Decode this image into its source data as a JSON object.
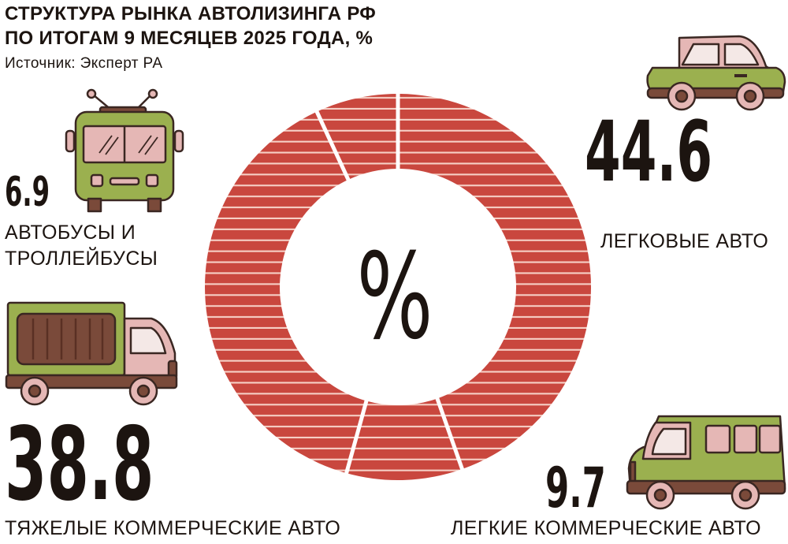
{
  "header": {
    "title_line1": "СТРУКТУРА РЫНКА АВТОЛИЗИНГА РФ",
    "title_line2": "ПО ИТОГАМ 9 МЕСЯЦЕВ 2025 ГОДА, %",
    "source": "Источник: Эксперт РА"
  },
  "center_symbol": "%",
  "colors": {
    "donut": "#c9473e",
    "stripe": "#f6d0c6",
    "green": "#9bb04f",
    "pink": "#e5b7b5",
    "brown": "#7a4a3a"
  },
  "chart_data": {
    "type": "pie",
    "title": "СТРУКТУРА РЫНКА АВТОЛИЗИНГА РФ ПО ИТОГАМ 9 МЕСЯЦЕВ 2025 ГОДА, %",
    "categories": [
      "ЛЕГКОВЫЕ АВТО",
      "ЛЕГКИЕ КОММЕРЧЕСКИЕ АВТО",
      "ТЯЖЕЛЫЕ КОММЕРЧЕСКИЕ АВТО",
      "АВТОБУСЫ И ТРОЛЛЕЙБУСЫ"
    ],
    "values": [
      44.6,
      9.7,
      38.8,
      6.9
    ],
    "value_labels": [
      "44.6",
      "9.7",
      "38.8",
      "6.9"
    ],
    "label_lines": [
      [
        "ЛЕГКОВЫЕ АВТО"
      ],
      [
        "ЛЕГКИЕ КОММЕРЧЕСКИЕ АВТО"
      ],
      [
        "ТЯЖЕЛЫЕ КОММЕРЧЕСКИЕ АВТО"
      ],
      [
        "АВТОБУСЫ И",
        "ТРОЛЛЕЙБУСЫ"
      ]
    ],
    "icons": [
      "passenger-car-icon",
      "van-icon",
      "truck-icon",
      "trolleybus-icon"
    ],
    "start_angle_deg": 0,
    "direction": "clockwise",
    "style": "donut"
  }
}
